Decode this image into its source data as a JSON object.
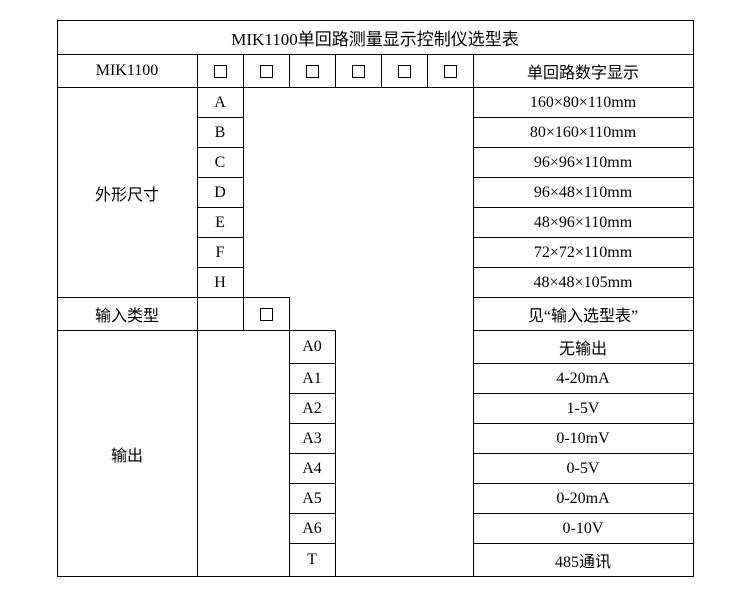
{
  "title": "MIK1100单回路测量显示控制仪选型表",
  "header": {
    "model": "MIK1100",
    "desc": "单回路数字显示"
  },
  "size": {
    "label": "外形尺寸",
    "rows": [
      {
        "code": "A",
        "desc": "160×80×110mm"
      },
      {
        "code": "B",
        "desc": "80×160×110mm"
      },
      {
        "code": "C",
        "desc": "96×96×110mm"
      },
      {
        "code": "D",
        "desc": "96×48×110mm"
      },
      {
        "code": "E",
        "desc": "48×96×110mm"
      },
      {
        "code": "F",
        "desc": "72×72×110mm"
      },
      {
        "code": "H",
        "desc": "48×48×105mm"
      }
    ]
  },
  "input": {
    "label": "输入类型",
    "desc": "见“输入选型表”"
  },
  "output": {
    "label": "输出",
    "rows": [
      {
        "code": "A0",
        "desc": "无输出"
      },
      {
        "code": "A1",
        "desc": "4-20mA"
      },
      {
        "code": "A2",
        "desc": "1-5V"
      },
      {
        "code": "A3",
        "desc": "0-10mV"
      },
      {
        "code": "A4",
        "desc": "0-5V"
      },
      {
        "code": "A5",
        "desc": "0-20mA"
      },
      {
        "code": "A6",
        "desc": "0-10V"
      },
      {
        "code": "T",
        "desc": "485通讯"
      }
    ]
  }
}
